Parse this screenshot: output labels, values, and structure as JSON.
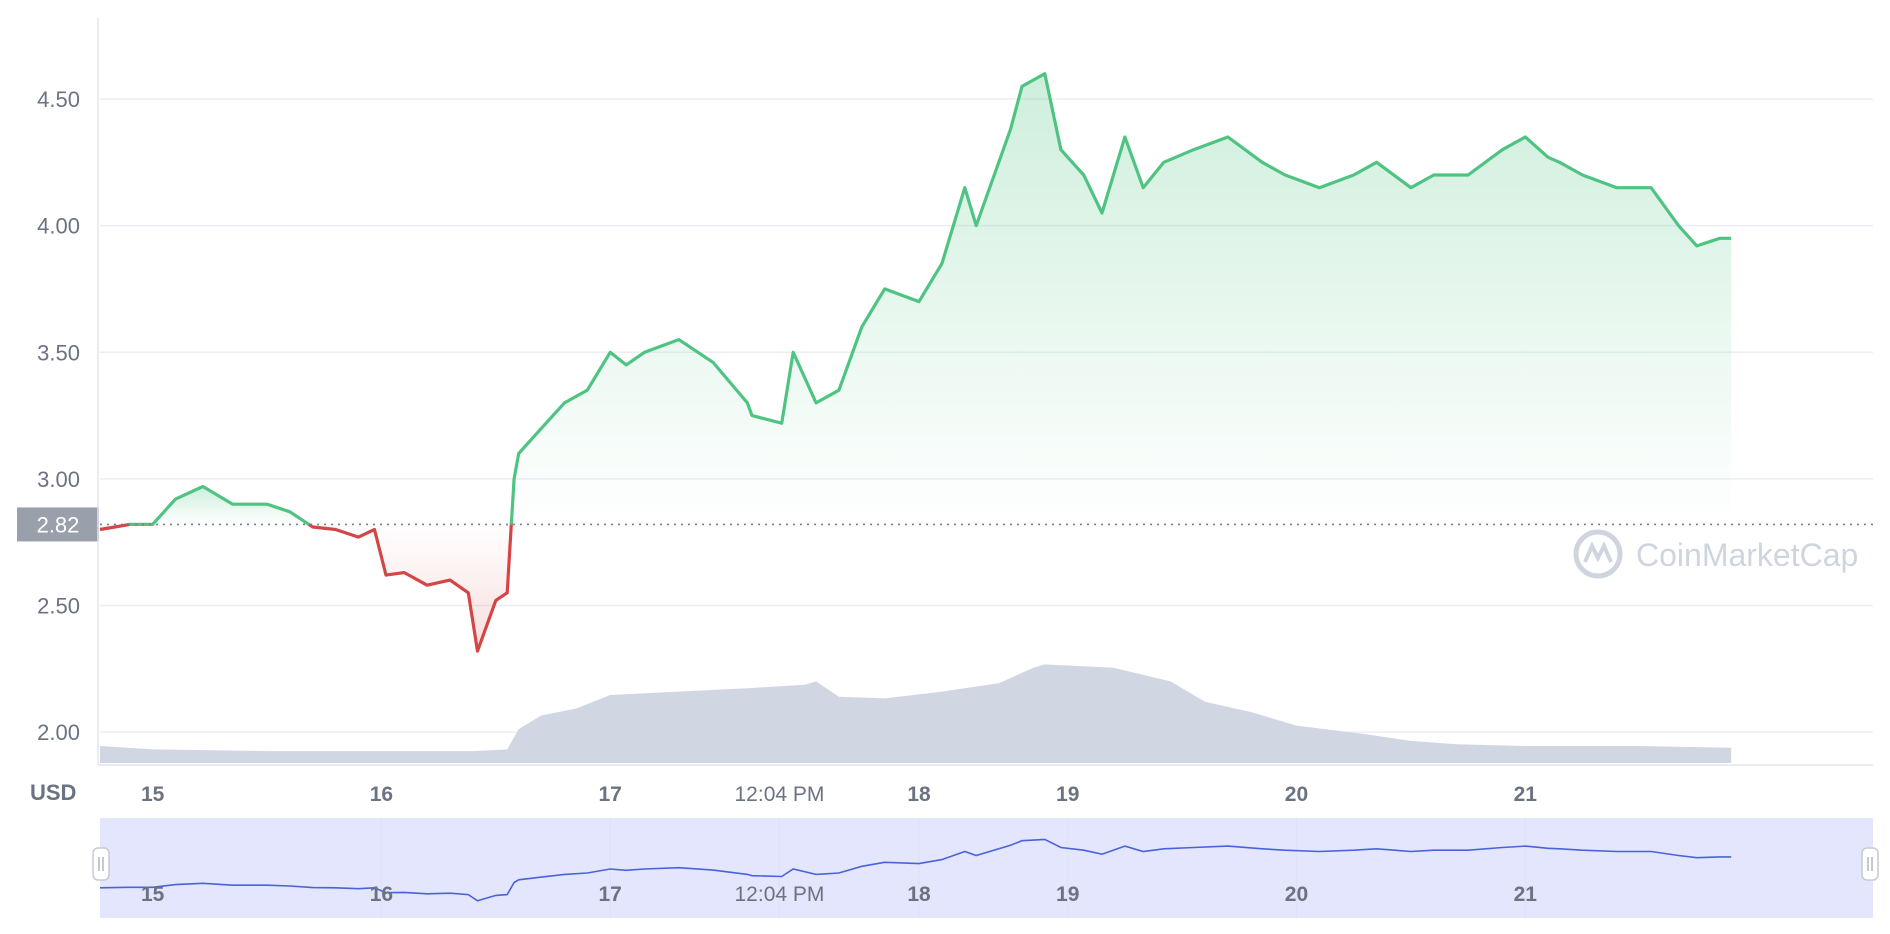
{
  "currency_label": "USD",
  "watermark": "CoinMarketCap",
  "colors": {
    "up": "#4fc482",
    "down": "#d64545",
    "volume": "#cfd4e1",
    "navigator_line": "#4a63d8",
    "navigator_fill": "#dfe3fb",
    "grid": "#eceef2",
    "price_label_bg": "#9aa0ab"
  },
  "chart_data": {
    "type": "line",
    "reference_price": 2.82,
    "reference_label": "2.82",
    "y_ticks": [
      "2.00",
      "2.50",
      "3.00",
      "3.50",
      "4.00",
      "4.50"
    ],
    "ylim": [
      1.87,
      4.82
    ],
    "x_ticks": [
      "15",
      "16",
      "17",
      "12:04 PM",
      "18",
      "19",
      "20",
      "21"
    ],
    "navigator_x_ticks": [
      "15",
      "16",
      "17",
      "12:04 PM",
      "18",
      "19",
      "20",
      "21"
    ],
    "x_tick_positions_days": [
      15,
      16,
      17,
      17.74,
      18.35,
      19,
      20,
      21
    ],
    "xlim_days": [
      14.77,
      22.52
    ],
    "grid": true,
    "series": [
      {
        "x": [
          14.77,
          14.9,
          15.0,
          15.1,
          15.22,
          15.35,
          15.5,
          15.6,
          15.7,
          15.8,
          15.9,
          15.97,
          16.02,
          16.1,
          16.2,
          16.3,
          16.38,
          16.42,
          16.5,
          16.55,
          16.58,
          16.6,
          16.7,
          16.8,
          16.9,
          17.0,
          17.07,
          17.15,
          17.3,
          17.45,
          17.6,
          17.62,
          17.75,
          17.8,
          17.9,
          18.0,
          18.1,
          18.2,
          18.35,
          18.45,
          18.55,
          18.6,
          18.75,
          18.8,
          18.9,
          18.97,
          19.07,
          19.15,
          19.25,
          19.33,
          19.42,
          19.55,
          19.7,
          19.85,
          19.95,
          20.1,
          20.25,
          20.35,
          20.5,
          20.6,
          20.75,
          20.9,
          21.0,
          21.1,
          21.15,
          21.25,
          21.4,
          21.55,
          21.67,
          21.75,
          21.85,
          21.9
        ],
        "values": [
          2.8,
          2.82,
          2.82,
          2.92,
          2.97,
          2.9,
          2.9,
          2.87,
          2.81,
          2.8,
          2.77,
          2.8,
          2.62,
          2.63,
          2.58,
          2.6,
          2.55,
          2.32,
          2.52,
          2.55,
          3.0,
          3.1,
          3.2,
          3.3,
          3.35,
          3.5,
          3.45,
          3.5,
          3.55,
          3.46,
          3.3,
          3.25,
          3.22,
          3.5,
          3.3,
          3.35,
          3.6,
          3.75,
          3.7,
          3.85,
          4.15,
          4.0,
          4.38,
          4.55,
          4.6,
          4.3,
          4.2,
          4.05,
          4.35,
          4.15,
          4.25,
          4.3,
          4.35,
          4.25,
          4.2,
          4.15,
          4.2,
          4.25,
          4.15,
          4.2,
          4.2,
          4.3,
          4.35,
          4.27,
          4.25,
          4.2,
          4.15,
          4.15,
          4.0,
          3.92,
          3.95,
          3.95
        ]
      }
    ],
    "volume": {
      "x": [
        14.77,
        15.0,
        15.5,
        16.0,
        16.4,
        16.55,
        16.6,
        16.7,
        16.85,
        17.0,
        17.3,
        17.6,
        17.85,
        17.9,
        18.0,
        18.2,
        18.45,
        18.7,
        18.85,
        18.9,
        19.2,
        19.45,
        19.6,
        19.8,
        20.0,
        20.3,
        20.5,
        20.7,
        21.0,
        21.5,
        21.9
      ],
      "values": [
        0.1,
        0.08,
        0.07,
        0.07,
        0.07,
        0.08,
        0.2,
        0.28,
        0.32,
        0.4,
        0.42,
        0.44,
        0.46,
        0.48,
        0.39,
        0.38,
        0.42,
        0.47,
        0.56,
        0.58,
        0.56,
        0.48,
        0.36,
        0.3,
        0.22,
        0.17,
        0.13,
        0.11,
        0.1,
        0.1,
        0.09
      ]
    }
  }
}
